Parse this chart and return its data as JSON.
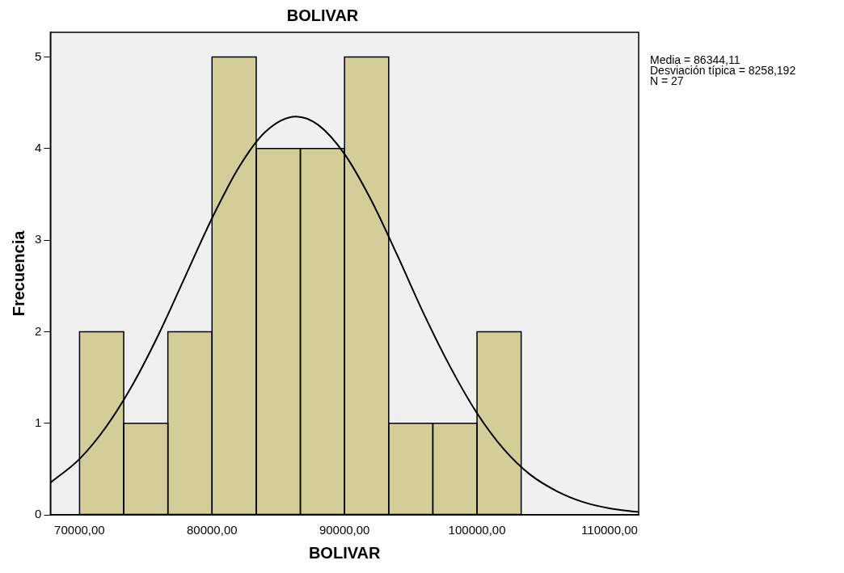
{
  "chart_data": {
    "type": "histogram",
    "title": "BOLIVAR",
    "xlabel": "BOLIVAR",
    "ylabel": "Frecuencia",
    "bins": [
      70000,
      73333.33,
      76666.67,
      80000,
      83333.33,
      86666.67,
      90000,
      93333.33,
      96666.67,
      100000,
      103333.33
    ],
    "values": [
      2,
      1,
      2,
      5,
      4,
      4,
      5,
      1,
      1,
      2
    ],
    "color": "#d3ce98",
    "series": [
      {
        "type": "line",
        "color": "#000000",
        "x": [
          67800,
          70000,
          72000,
          74000,
          76000,
          78000,
          80000,
          82000,
          84000,
          86344,
          88000,
          90000,
          92000,
          94000,
          96000,
          98000,
          100000,
          102000,
          104000,
          106000,
          108000,
          110000,
          112200
        ],
        "values": [
          0.35,
          0.61,
          0.96,
          1.42,
          1.98,
          2.61,
          3.24,
          3.79,
          4.18,
          4.35,
          4.26,
          3.94,
          3.44,
          2.83,
          2.19,
          1.61,
          1.11,
          0.72,
          0.44,
          0.26,
          0.14,
          0.07,
          0.03
        ]
      }
    ],
    "marker": "none",
    "xlim": [
      67800,
      112200
    ],
    "xticks": [
      {
        "value": 70000,
        "label": "70000,00"
      },
      {
        "value": 80000,
        "label": "80000,00"
      },
      {
        "value": 90000,
        "label": "90000,00"
      },
      {
        "value": 100000,
        "label": "100000,00"
      },
      {
        "value": 110000,
        "label": "110000,00"
      }
    ],
    "ylim": [
      0,
      5.27
    ],
    "yticks": [
      0,
      1,
      2,
      3,
      4,
      5
    ],
    "annotations": [
      "Media = 86344,11",
      "Desviación típica = 8258,192",
      "N = 27"
    ]
  }
}
